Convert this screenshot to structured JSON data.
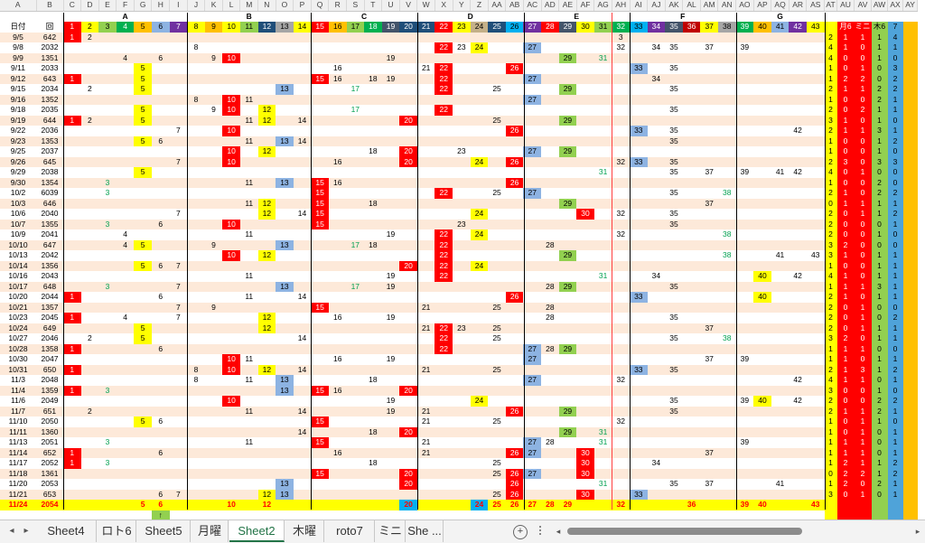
{
  "column_letters": [
    "A",
    "B",
    "C",
    "D",
    "E",
    "F",
    "G",
    "H",
    "I",
    "J",
    "K",
    "L",
    "M",
    "N",
    "O",
    "P",
    "Q",
    "R",
    "S",
    "T",
    "U",
    "V",
    "W",
    "X",
    "Y",
    "Z",
    "AA",
    "AB",
    "AC",
    "AD",
    "AE",
    "AF",
    "AG",
    "AH",
    "AI",
    "AJ",
    "AK",
    "AL",
    "AM",
    "AN",
    "AO",
    "AP",
    "AQ",
    "AR",
    "AS",
    "AT",
    "AU",
    "AV",
    "AW",
    "AX",
    "AY"
  ],
  "group_headers": [
    "A",
    "B",
    "C",
    "D",
    "E",
    "F",
    "G"
  ],
  "row_header": {
    "date": "日付",
    "round": "回"
  },
  "number_header": [
    "1",
    "2",
    "3",
    "4",
    "5",
    "6",
    "7",
    "8",
    "9",
    "10",
    "11",
    "12",
    "13",
    "14",
    "15",
    "16",
    "17",
    "18",
    "19",
    "20",
    "21",
    "22",
    "23",
    "24",
    "25",
    "26",
    "27",
    "28",
    "29",
    "30",
    "31",
    "32",
    "33",
    "34",
    "35",
    "36",
    "37",
    "38",
    "39",
    "40",
    "41",
    "42",
    "43"
  ],
  "stat_header": [
    "",
    "月6",
    "ミニ",
    "木6",
    "7"
  ],
  "rows": [
    {
      "d": "9/5",
      "r": "642",
      "n": {
        "1": "1",
        "2": "2",
        "32": "3"
      },
      "s": [
        "2",
        "1",
        "1",
        "1",
        "4"
      ]
    },
    {
      "d": "9/8",
      "r": "2032",
      "n": {
        "8": "8",
        "22": "22",
        "23": "23",
        "24": "24",
        "27": "27",
        "32": "32",
        "34": "34",
        "35": "35",
        "37": "37",
        "39": "39"
      },
      "s": [
        "4",
        "1",
        "0",
        "1",
        "1"
      ]
    },
    {
      "d": "9/9",
      "r": "1351",
      "n": {
        "4": "4",
        "6": "6",
        "9": "9",
        "10": "10",
        "19": "19",
        "29": "29",
        "31": "31"
      },
      "s": [
        "4",
        "0",
        "0",
        "1",
        "0"
      ]
    },
    {
      "d": "9/11",
      "r": "2033",
      "n": {
        "5": "5",
        "16": "16",
        "21": "21",
        "22": "22",
        "26": "26",
        "33": "33",
        "35": "35"
      },
      "s": [
        "1",
        "0",
        "1",
        "0",
        "3"
      ]
    },
    {
      "d": "9/12",
      "r": "643",
      "n": {
        "1": "1",
        "5": "5",
        "15": "15",
        "16": "16",
        "18": "18",
        "19": "19",
        "22": "22",
        "27": "27",
        "34": "34"
      },
      "s": [
        "1",
        "2",
        "2",
        "0",
        "2"
      ]
    },
    {
      "d": "9/15",
      "r": "2034",
      "n": {
        "2": "2",
        "5": "5",
        "13": "13",
        "17": "17",
        "22": "22",
        "25": "25",
        "29": "29",
        "35": "35"
      },
      "s": [
        "2",
        "1",
        "1",
        "2",
        "2"
      ]
    },
    {
      "d": "9/16",
      "r": "1352",
      "n": {
        "8": "8",
        "10": "10",
        "11": "11",
        "27": "27"
      },
      "s": [
        "1",
        "0",
        "0",
        "2",
        "1"
      ]
    },
    {
      "d": "9/18",
      "r": "2035",
      "n": {
        "5": "5",
        "9": "9",
        "10": "10",
        "12": "12",
        "17": "17",
        "22": "22",
        "35": "35"
      },
      "s": [
        "2",
        "0",
        "2",
        "1",
        "1"
      ]
    },
    {
      "d": "9/19",
      "r": "644",
      "n": {
        "1": "1",
        "2": "2",
        "5": "5",
        "11": "11",
        "12": "12",
        "14": "14",
        "20": "20",
        "25": "25",
        "29": "29"
      },
      "s": [
        "3",
        "1",
        "0",
        "1",
        "0"
      ]
    },
    {
      "d": "9/22",
      "r": "2036",
      "n": {
        "7": "7",
        "10": "10",
        "26": "26",
        "33": "33",
        "35": "35",
        "42": "42"
      },
      "s": [
        "2",
        "1",
        "1",
        "3",
        "1"
      ]
    },
    {
      "d": "9/23",
      "r": "1353",
      "n": {
        "5": "5",
        "6": "6",
        "11": "11",
        "13": "13",
        "14": "14",
        "35": "35"
      },
      "s": [
        "1",
        "0",
        "0",
        "1",
        "2"
      ]
    },
    {
      "d": "9/25",
      "r": "2037",
      "n": {
        "10": "10",
        "12": "12",
        "18": "18",
        "20": "20",
        "23": "23",
        "27": "27",
        "29": "29"
      },
      "s": [
        "1",
        "0",
        "0",
        "1",
        "0"
      ]
    },
    {
      "d": "9/26",
      "r": "645",
      "n": {
        "7": "7",
        "10": "10",
        "16": "16",
        "20": "20",
        "24": "24",
        "26": "26",
        "32": "32",
        "33": "33",
        "35": "35"
      },
      "s": [
        "2",
        "3",
        "0",
        "3",
        "3"
      ]
    },
    {
      "d": "9/29",
      "r": "2038",
      "n": {
        "5": "5",
        "31": "31",
        "35": "35",
        "37": "37",
        "39": "39",
        "41": "41",
        "42": "42"
      },
      "s": [
        "4",
        "0",
        "1",
        "0",
        "0"
      ]
    },
    {
      "d": "9/30",
      "r": "1354",
      "n": {
        "3": "3",
        "11": "11",
        "13": "13",
        "15": "15",
        "16": "16",
        "26": "26"
      },
      "s": [
        "1",
        "0",
        "0",
        "2",
        "0"
      ]
    },
    {
      "d": "10/2",
      "r": "6039",
      "n": {
        "3": "3",
        "15": "15",
        "22": "22",
        "25": "25",
        "27": "27",
        "35": "35",
        "38": "38"
      },
      "s": [
        "2",
        "1",
        "0",
        "2",
        "2"
      ]
    },
    {
      "d": "10/3",
      "r": "646",
      "n": {
        "11": "11",
        "12": "12",
        "15": "15",
        "18": "18",
        "29": "29",
        "37": "37"
      },
      "s": [
        "0",
        "1",
        "1",
        "1",
        "1"
      ]
    },
    {
      "d": "10/6",
      "r": "2040",
      "n": {
        "7": "7",
        "12": "12",
        "14": "14",
        "15": "15",
        "24": "24",
        "30": "30",
        "32": "32",
        "35": "35"
      },
      "s": [
        "2",
        "0",
        "1",
        "1",
        "2"
      ]
    },
    {
      "d": "10/7",
      "r": "1355",
      "n": {
        "3": "3",
        "6": "6",
        "10": "10",
        "15": "15",
        "23": "23",
        "35": "35"
      },
      "s": [
        "2",
        "0",
        "0",
        "0",
        "1"
      ]
    },
    {
      "d": "10/9",
      "r": "2041",
      "n": {
        "4": "4",
        "11": "11",
        "19": "19",
        "22": "22",
        "24": "24",
        "32": "32",
        "38": "38"
      },
      "s": [
        "2",
        "0",
        "0",
        "1",
        "0"
      ]
    },
    {
      "d": "10/10",
      "r": "647",
      "n": {
        "4": "4",
        "5": "5",
        "9": "9",
        "13": "13",
        "17": "17",
        "18": "18",
        "22": "22",
        "28": "28"
      },
      "s": [
        "3",
        "2",
        "0",
        "0",
        "0"
      ]
    },
    {
      "d": "10/13",
      "r": "2042",
      "n": {
        "10": "10",
        "12": "12",
        "22": "22",
        "29": "29",
        "38": "38",
        "41": "41",
        "43": "43"
      },
      "s": [
        "3",
        "1",
        "0",
        "1",
        "1"
      ]
    },
    {
      "d": "10/14",
      "r": "1356",
      "n": {
        "5": "5",
        "6": "6",
        "7": "7",
        "20": "20",
        "22": "22",
        "24": "24"
      },
      "s": [
        "1",
        "0",
        "0",
        "1",
        "1"
      ]
    },
    {
      "d": "10/16",
      "r": "2043",
      "n": {
        "11": "11",
        "19": "19",
        "22": "22",
        "31": "31",
        "34": "34",
        "40": "40",
        "42": "42"
      },
      "s": [
        "4",
        "1",
        "0",
        "1",
        "1"
      ]
    },
    {
      "d": "10/17",
      "r": "648",
      "n": {
        "3": "3",
        "7": "7",
        "13": "13",
        "17": "17",
        "19": "19",
        "28": "28",
        "29": "29",
        "35": "35"
      },
      "s": [
        "1",
        "1",
        "1",
        "3",
        "1"
      ]
    },
    {
      "d": "10/20",
      "r": "2044",
      "n": {
        "1": "1",
        "6": "6",
        "11": "11",
        "14": "14",
        "26": "26",
        "33": "33",
        "40": "40"
      },
      "s": [
        "2",
        "1",
        "0",
        "1",
        "1"
      ]
    },
    {
      "d": "10/21",
      "r": "1357",
      "n": {
        "7": "7",
        "9": "9",
        "15": "15",
        "21": "21",
        "25": "25",
        "28": "28"
      },
      "s": [
        "2",
        "0",
        "1",
        "0",
        "0"
      ]
    },
    {
      "d": "10/23",
      "r": "2045",
      "n": {
        "1": "1",
        "4": "4",
        "7": "7",
        "12": "12",
        "16": "16",
        "19": "19",
        "28": "28",
        "35": "35"
      },
      "s": [
        "2",
        "0",
        "1",
        "0",
        "2"
      ]
    },
    {
      "d": "10/24",
      "r": "649",
      "n": {
        "5": "5",
        "12": "12",
        "21": "21",
        "22": "22",
        "23": "23",
        "25": "25",
        "37": "37"
      },
      "s": [
        "2",
        "0",
        "1",
        "1",
        "1"
      ]
    },
    {
      "d": "10/27",
      "r": "2046",
      "n": {
        "2": "2",
        "5": "5",
        "14": "14",
        "22": "22",
        "25": "25",
        "35": "35",
        "38": "38"
      },
      "s": [
        "3",
        "2",
        "0",
        "1",
        "1"
      ]
    },
    {
      "d": "10/28",
      "r": "1358",
      "n": {
        "1": "1",
        "6": "6",
        "22": "22",
        "27": "27",
        "28": "28",
        "29": "29"
      },
      "s": [
        "1",
        "1",
        "1",
        "0",
        "0"
      ]
    },
    {
      "d": "10/30",
      "r": "2047",
      "n": {
        "10": "10",
        "11": "11",
        "16": "16",
        "19": "19",
        "27": "27",
        "37": "37",
        "39": "39"
      },
      "s": [
        "1",
        "1",
        "0",
        "1",
        "1"
      ]
    },
    {
      "d": "10/31",
      "r": "650",
      "n": {
        "1": "1",
        "8": "8",
        "10": "10",
        "12": "12",
        "14": "14",
        "21": "21",
        "25": "25",
        "33": "33",
        "35": "35"
      },
      "s": [
        "2",
        "1",
        "3",
        "1",
        "2"
      ]
    },
    {
      "d": "11/3",
      "r": "2048",
      "n": {
        "8": "8",
        "11": "11",
        "13": "13",
        "18": "18",
        "27": "27",
        "32": "32",
        "42": "42"
      },
      "s": [
        "4",
        "1",
        "1",
        "0",
        "1"
      ]
    },
    {
      "d": "11/4",
      "r": "1359",
      "n": {
        "1": "1",
        "3": "3",
        "13": "13",
        "15": "15",
        "16": "16",
        "20": "20"
      },
      "s": [
        "3",
        "0",
        "0",
        "1",
        "0"
      ]
    },
    {
      "d": "11/6",
      "r": "2049",
      "n": {
        "10": "10",
        "19": "19",
        "24": "24",
        "35": "35",
        "39": "39",
        "40": "40",
        "42": "42"
      },
      "s": [
        "2",
        "0",
        "0",
        "2",
        "2"
      ]
    },
    {
      "d": "11/7",
      "r": "651",
      "n": {
        "2": "2",
        "11": "11",
        "14": "14",
        "19": "19",
        "21": "21",
        "26": "26",
        "26b": "26",
        "29": "29",
        "35": "35"
      },
      "s": [
        "2",
        "1",
        "1",
        "2",
        "1"
      ]
    },
    {
      "d": "11/10",
      "r": "2050",
      "n": {
        "5": "5",
        "6": "6",
        "15": "15",
        "21": "21",
        "25": "25",
        "32": "32"
      },
      "s": [
        "1",
        "0",
        "1",
        "1",
        "0"
      ]
    },
    {
      "d": "11/11",
      "r": "1360",
      "n": {
        "14": "14",
        "18": "18",
        "20": "20",
        "29": "29",
        "31": "31"
      },
      "s": [
        "1",
        "0",
        "1",
        "0",
        "1"
      ]
    },
    {
      "d": "11/13",
      "r": "2051",
      "n": {
        "3": "3",
        "11": "11",
        "15": "15",
        "21": "21",
        "27": "27",
        "28": "28",
        "31": "31",
        "39": "39"
      },
      "s": [
        "1",
        "1",
        "1",
        "0",
        "1"
      ]
    },
    {
      "d": "11/14",
      "r": "652",
      "n": {
        "1": "1",
        "6": "6",
        "16": "16",
        "21": "21",
        "26": "26",
        "27": "27",
        "30": "30",
        "37": "37"
      },
      "s": [
        "1",
        "1",
        "1",
        "0",
        "1"
      ]
    },
    {
      "d": "11/17",
      "r": "2052",
      "n": {
        "1": "1",
        "3": "3",
        "18": "18",
        "25": "25",
        "30": "30",
        "34": "34"
      },
      "s": [
        "1",
        "2",
        "1",
        "1",
        "2"
      ]
    },
    {
      "d": "11/18",
      "r": "1361",
      "n": {
        "15": "15",
        "20": "20",
        "25": "25",
        "26": "26",
        "27": "27",
        "30": "30"
      },
      "s": [
        "0",
        "2",
        "2",
        "1",
        "2"
      ]
    },
    {
      "d": "11/20",
      "r": "2053",
      "n": {
        "13": "13",
        "20": "20",
        "26": "26",
        "31": "31",
        "35": "35",
        "37": "37",
        "41": "41"
      },
      "s": [
        "1",
        "2",
        "0",
        "2",
        "1"
      ]
    },
    {
      "d": "11/21",
      "r": "653",
      "n": {
        "6": "6",
        "7": "7",
        "12": "12",
        "13": "13",
        "25": "25",
        "26": "26",
        "30": "30",
        "33": "33"
      },
      "s": [
        "3",
        "0",
        "1",
        "0",
        "1"
      ]
    }
  ],
  "total_row": {
    "d": "11/24",
    "r": "2054",
    "n": {
      "5": "5",
      "6": "6",
      "10": "10",
      "12": "12",
      "20": "20",
      "24": "24",
      "25": "25",
      "26": "26",
      "27": "27",
      "28": "28",
      "29": "29",
      "32": "32",
      "36": "36",
      "39": "39",
      "40": "40",
      "43": "43"
    }
  },
  "tabs": [
    "Sheet4",
    "ロト6",
    "Sheet5",
    "月曜",
    "Sheet2",
    "木曜",
    "roto7",
    "ミニ",
    "She ..."
  ],
  "active_tab": "Sheet2",
  "add_sheet_symbol": "+",
  "nav_prev": "◂",
  "nav_next": "▸",
  "scroll_left": "◂",
  "scroll_right": "▸",
  "marker": "↑",
  "colors": {
    "excel_green": "#217346",
    "red": "#ff0000",
    "yellow": "#ffff00",
    "blue": "#8db3e2",
    "band": "#fde9d9"
  }
}
